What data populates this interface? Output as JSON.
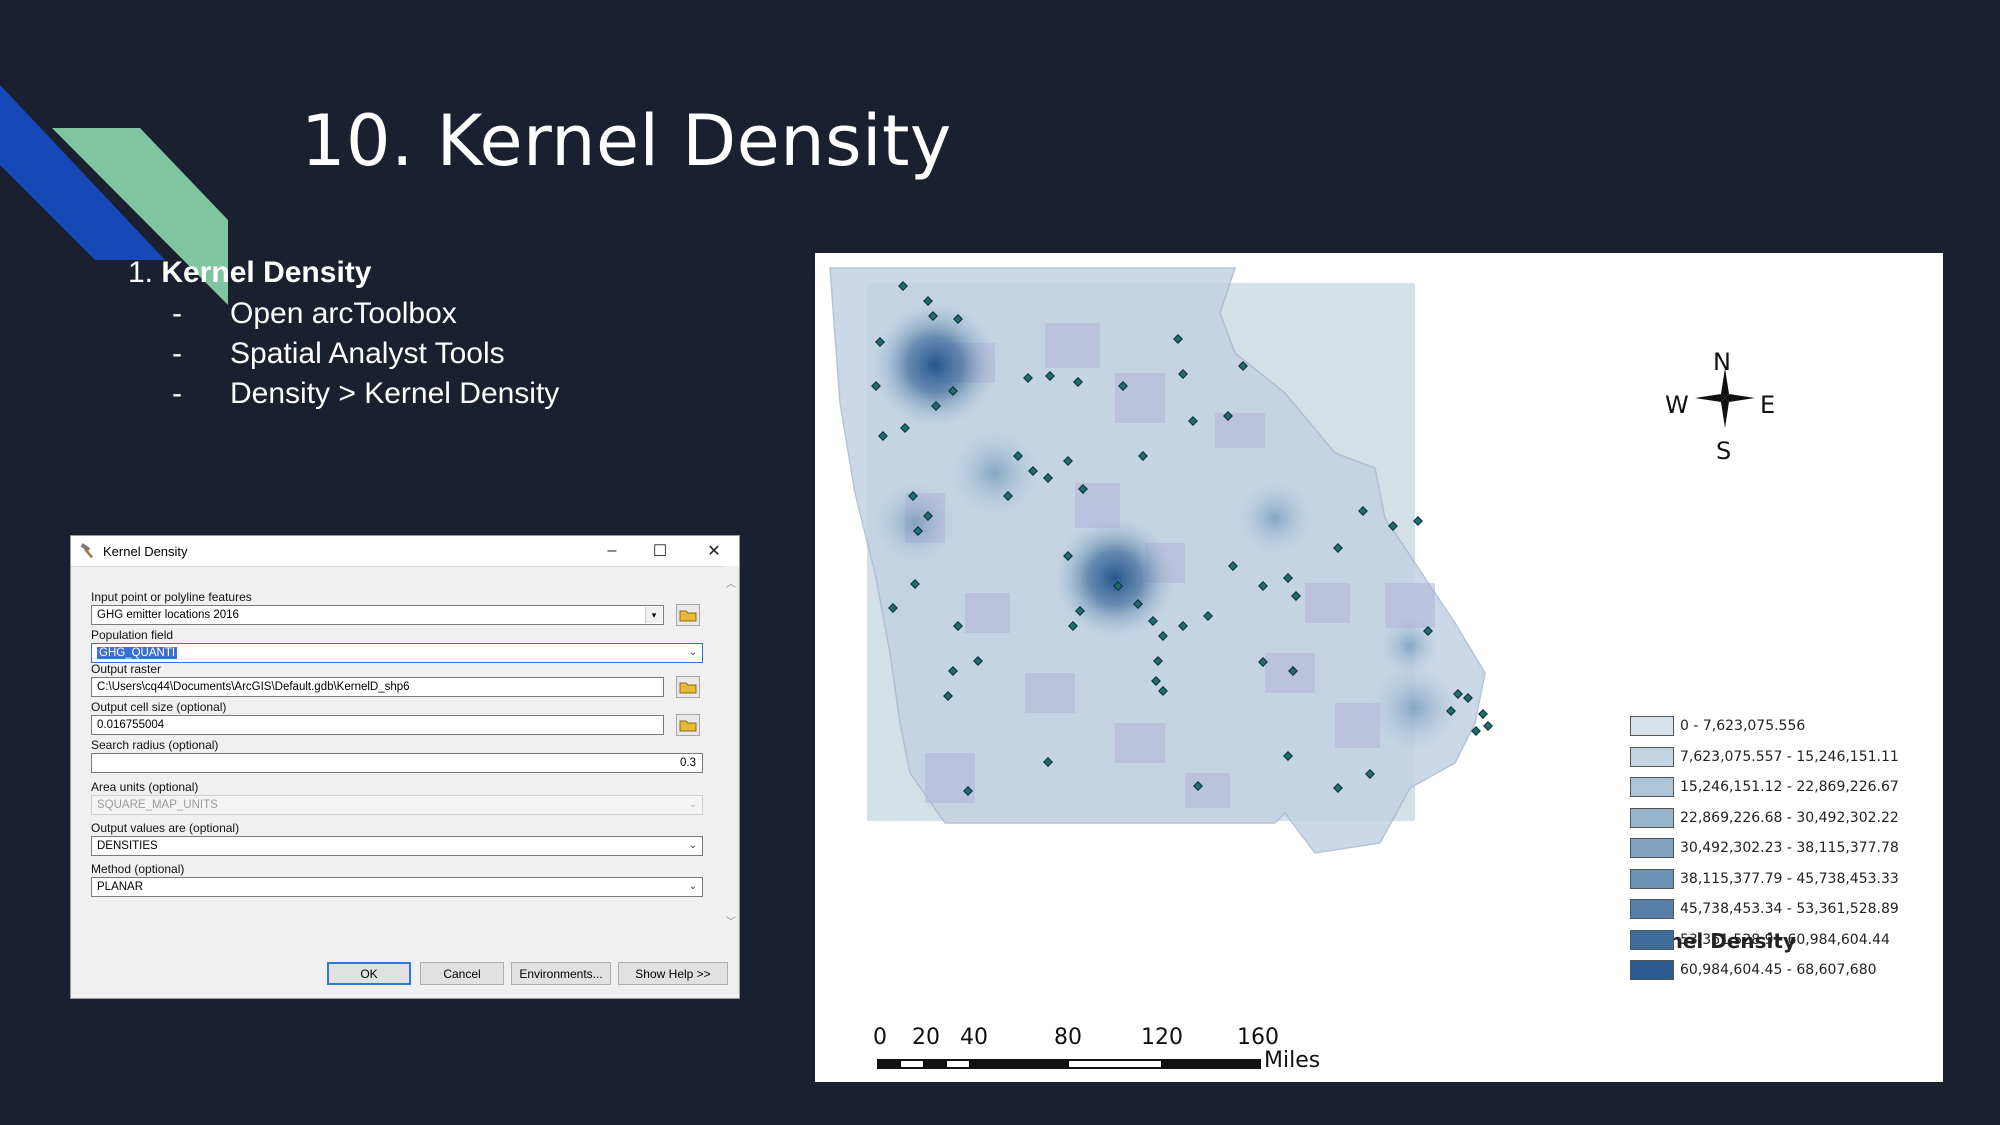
{
  "slide": {
    "title": "10. Kernel Density",
    "bullets": {
      "main_num": "1.",
      "main_label": "Kernel Density",
      "sub": [
        "Open arcToolbox",
        "Spatial Analyst Tools",
        "Density > Kernel Density"
      ],
      "dash": "-"
    },
    "colors": {
      "background": "#1b2030",
      "accent_blue": "#1748b8",
      "accent_green": "#7fc6a0"
    }
  },
  "dialog": {
    "title": "Kernel Density",
    "title_icon": "hammer-icon",
    "controls": {
      "minimize": "–",
      "maximize": "☐",
      "close": "✕"
    },
    "input_label": "Input point or polyline features",
    "input_value": "GHG emitter locations 2016",
    "population_label": "Population field",
    "population_value": "GHG_QUANTI",
    "output_raster_label": "Output raster",
    "output_raster_value": "C:\\Users\\cq44\\Documents\\ArcGIS\\Default.gdb\\KernelD_shp6",
    "cell_size_label": "Output cell size (optional)",
    "cell_size_value": "0.016755004",
    "search_radius_label": "Search radius (optional)",
    "search_radius_value": "0.3",
    "area_units_label": "Area units (optional)",
    "area_units_value": "SQUARE_MAP_UNITS",
    "output_values_label": "Output values are (optional)",
    "output_values_value": "DENSITIES",
    "method_label": "Method (optional)",
    "method_value": "PLANAR",
    "buttons": {
      "ok": "OK",
      "cancel": "Cancel",
      "environments": "Environments...",
      "show_help": "Show Help >>"
    }
  },
  "map": {
    "compass": {
      "n": "N",
      "s": "S",
      "e": "E",
      "w": "W"
    },
    "legend_title": "Kernel Density",
    "legend": [
      {
        "label": "0 - 7,623,075.556",
        "color": "#d6e3ea"
      },
      {
        "label": "7,623,075.557 - 15,246,151.11",
        "color": "#c3d5e1"
      },
      {
        "label": "15,246,151.12 - 22,869,226.67",
        "color": "#adc5d8"
      },
      {
        "label": "22,869,226.68 - 30,492,302.22",
        "color": "#97b5cd"
      },
      {
        "label": "30,492,302.23 - 38,115,377.78",
        "color": "#81a3c1"
      },
      {
        "label": "38,115,377.79 - 45,738,453.33",
        "color": "#6b91b5"
      },
      {
        "label": "45,738,453.34 - 53,361,528.89",
        "color": "#557fa8"
      },
      {
        "label": "53,361,528.9 - 60,984,604.44",
        "color": "#3f6c9b"
      },
      {
        "label": "60,984,604.45 - 68,607,680",
        "color": "#2a5a8f"
      }
    ],
    "scale_labels": [
      "0",
      "20",
      "40",
      "80",
      "120",
      "160"
    ],
    "scale_unit": "Miles"
  }
}
